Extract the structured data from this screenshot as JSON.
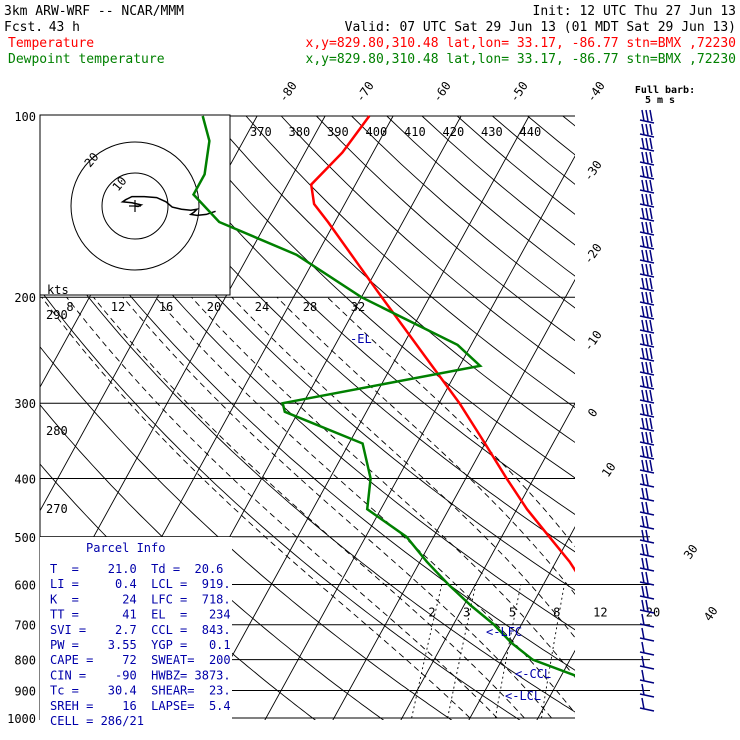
{
  "header": {
    "model": "3km ARW-WRF -- NCAR/MMM",
    "init": "Init: 12 UTC Thu 27 Jun 13",
    "fcst_label": "Fcst.",
    "fcst_value": "43 h",
    "valid": "Valid: 07 UTC Sat 29 Jun 13 (01 MDT Sat 29 Jun 13)"
  },
  "legend": [
    {
      "name": "Temperature",
      "info": "x,y=829.80,310.48   lat,lon= 33.17, -86.77   stn=BMX ,72230",
      "color": "#ff0000"
    },
    {
      "name": "Dewpoint temperature",
      "info": "x,y=829.80,310.48   lat,lon= 33.17, -86.77   stn=BMX ,72230",
      "color": "#008000"
    }
  ],
  "colors": {
    "temperature": "#ff0000",
    "dewpoint": "#008000",
    "text_blue": "#0000aa",
    "barb": "#000080",
    "grid": "#000000"
  },
  "hodograph": {
    "ring_labels": [
      "10",
      "20"
    ],
    "center_icon": "plus-icon",
    "trace": [
      [
        0,
        0
      ],
      [
        1,
        0.5
      ],
      [
        2,
        -1
      ],
      [
        -1,
        -3
      ],
      [
        -4,
        -4
      ],
      [
        -3,
        -6
      ],
      [
        -1,
        -9
      ],
      [
        3,
        -9
      ],
      [
        7,
        -8
      ],
      [
        10,
        -4
      ],
      [
        12,
        1
      ],
      [
        15,
        3
      ],
      [
        18,
        4
      ],
      [
        20,
        3
      ],
      [
        19,
        6
      ],
      [
        18,
        8
      ],
      [
        20,
        9
      ],
      [
        23,
        8
      ],
      [
        25,
        6
      ],
      [
        26,
        5
      ]
    ]
  },
  "wind_header": {
    "line1": "Full barb:",
    "line2": "5 m s"
  },
  "parcel": {
    "title": "Parcel Info",
    "rows": [
      "T  =    21.0  Td =  20.6",
      "LI =     0.4  LCL =  919.",
      "K  =      24  LFC =  718.",
      "TT =      41  EL  =   234",
      "SVI =    2.7  CCL =  843.",
      "PW =    3.55  YGP =   0.1",
      "CAPE =    72  SWEAT=  200",
      "CIN =    -90  HWBZ= 3873.",
      "Tc =    30.4  SHEAR=  23.",
      "SREH =    16  LAPSE=  5.4",
      "CELL = 286/21"
    ]
  },
  "level_labels": {
    "el": "-EL",
    "lfc": "<-LFC",
    "ccl": "<-CCL",
    "lcl": "<-LCL"
  },
  "chart_data": {
    "type": "line",
    "pressure_levels": [
      100,
      200,
      300,
      400,
      500,
      600,
      700,
      800,
      900,
      1000
    ],
    "pressure_labels": [
      "100",
      "200",
      "300",
      "400",
      "500",
      "600",
      "700",
      "800",
      "900",
      "1000"
    ],
    "isotherms": [
      -40,
      -30,
      -20,
      -10,
      0,
      10,
      20,
      30,
      40
    ],
    "isotherm_labels_top": [
      "-80",
      "-70",
      "-60",
      "-50",
      "-40"
    ],
    "isotherm_labels_right": [
      "-30",
      "-20",
      "-10",
      "0",
      "10",
      "30",
      "40"
    ],
    "theta_labels": [
      {
        "t": "370",
        "p": 100
      },
      {
        "t": "380",
        "p": 100
      },
      {
        "t": "390",
        "p": 100
      },
      {
        "t": "400",
        "p": 100
      },
      {
        "t": "410",
        "p": 100
      },
      {
        "t": "420",
        "p": 100
      },
      {
        "t": "430",
        "p": 100
      },
      {
        "t": "440",
        "p": 100
      },
      {
        "t": "290",
        "p": 220
      },
      {
        "t": "280",
        "p": 300
      },
      {
        "t": "270",
        "p": 460
      }
    ],
    "mixing_ratio_labels": [
      "2",
      "3",
      "5",
      "8",
      "12",
      "20"
    ],
    "kts_scale": {
      "title": "kts",
      "ticks": [
        "8",
        "12",
        "16",
        "20",
        "24",
        "28",
        "32"
      ]
    },
    "series": [
      {
        "name": "Temperature",
        "color": "#ff0000",
        "points": [
          [
            1000,
            22.0
          ],
          [
            975,
            21.0
          ],
          [
            950,
            21.5
          ],
          [
            925,
            21.0
          ],
          [
            900,
            21.0
          ],
          [
            850,
            19.5
          ],
          [
            800,
            17.5
          ],
          [
            750,
            15.0
          ],
          [
            700,
            12.0
          ],
          [
            650,
            9.0
          ],
          [
            600,
            6.0
          ],
          [
            550,
            2.0
          ],
          [
            500,
            -3.0
          ],
          [
            450,
            -8.5
          ],
          [
            400,
            -14.0
          ],
          [
            350,
            -20.0
          ],
          [
            300,
            -27.0
          ],
          [
            250,
            -36.0
          ],
          [
            200,
            -47.0
          ],
          [
            175,
            -53.5
          ],
          [
            150,
            -61.0
          ],
          [
            140,
            -64.5
          ],
          [
            130,
            -66.5
          ],
          [
            115,
            -64.5
          ],
          [
            100,
            -63.5
          ]
        ]
      },
      {
        "name": "Dewpoint temperature",
        "color": "#008000",
        "points": [
          [
            1000,
            20.6
          ],
          [
            975,
            20.0
          ],
          [
            950,
            20.0
          ],
          [
            925,
            19.5
          ],
          [
            900,
            18.5
          ],
          [
            850,
            12.0
          ],
          [
            800,
            4.5
          ],
          [
            750,
            0.0
          ],
          [
            700,
            -4.0
          ],
          [
            650,
            -9.0
          ],
          [
            600,
            -14.0
          ],
          [
            550,
            -19.0
          ],
          [
            500,
            -24.0
          ],
          [
            450,
            -32.0
          ],
          [
            400,
            -34.0
          ],
          [
            350,
            -38.0
          ],
          [
            310,
            -52.0
          ],
          [
            300,
            -53.0
          ],
          [
            260,
            -27.0
          ],
          [
            240,
            -32.0
          ],
          [
            200,
            -50.0
          ],
          [
            170,
            -63.0
          ],
          [
            150,
            -77.0
          ],
          [
            135,
            -83.0
          ],
          [
            125,
            -83.0
          ],
          [
            110,
            -85.0
          ],
          [
            100,
            -88.0
          ]
        ]
      }
    ]
  }
}
